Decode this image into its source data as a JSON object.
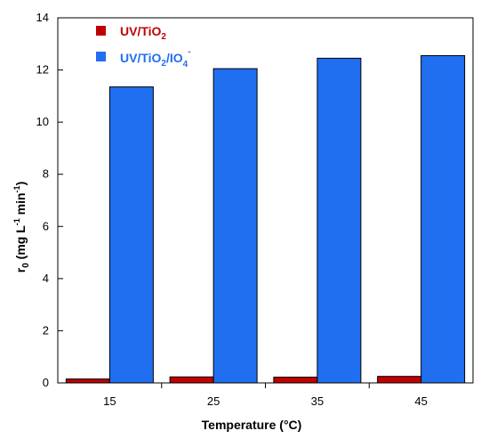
{
  "chart_data": {
    "type": "bar",
    "categories": [
      "15",
      "25",
      "35",
      "45"
    ],
    "series": [
      {
        "name": "UV/TiO2",
        "values": [
          0.15,
          0.23,
          0.22,
          0.25
        ],
        "color": "#c00000"
      },
      {
        "name": "UV/TiO2/IO4-",
        "values": [
          11.35,
          12.05,
          12.45,
          12.55
        ],
        "color": "#1f6ff0"
      }
    ],
    "xlabel": "Temperature (°C)",
    "ylabel": {
      "main": "r",
      "sub": "0",
      "rest": " (mg L",
      "sup1": "-1",
      "rest2": " min",
      "sup2": "-1",
      "close": ")"
    },
    "ylim": [
      0,
      14
    ],
    "yticks": [
      0,
      2,
      4,
      6,
      8,
      10,
      12,
      14
    ],
    "grid": false,
    "legend_position": "top-left",
    "legend": [
      {
        "base": "UV/TiO",
        "sub": "2",
        "rest": "",
        "sub2": "",
        "sup": ""
      },
      {
        "base": "UV/TiO",
        "sub": "2",
        "rest": "/IO",
        "sub2": "4",
        "sup": "-"
      }
    ]
  }
}
